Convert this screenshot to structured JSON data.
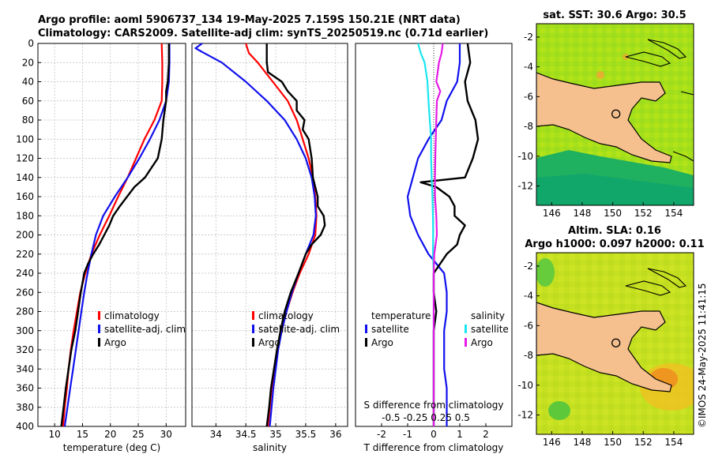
{
  "header": {
    "title_line1": "Argo profile: aoml 5906737_134 19-May-2025 7.159S 150.21E (NRT data)",
    "title_line2": "Climatology: CARS2009. Satellite-adj clim: synTS_20250519.nc (0.71d earlier)"
  },
  "credit": "©IMOS 24-May-2025 11:41:15",
  "colors": {
    "climatology": "#ff0000",
    "satellite": "#1010ee",
    "argo": "#000000",
    "sal_sat": "#19e6f0",
    "sal_argo": "#e619e6",
    "land": "#f5c08e"
  },
  "chart_data": [
    {
      "type": "line",
      "id": "temperature",
      "xlabel": "temperature (deg C)",
      "ylabel": "",
      "xlim": [
        7,
        33.5
      ],
      "ylim": [
        400,
        0
      ],
      "xticks": [
        10,
        15,
        20,
        25,
        30
      ],
      "yticks": [
        0,
        20,
        40,
        60,
        80,
        100,
        120,
        140,
        160,
        180,
        200,
        220,
        240,
        260,
        280,
        300,
        320,
        340,
        360,
        380,
        400
      ],
      "grid": true,
      "legend_position": "lower-right",
      "legend": [
        "climatology",
        "satellite-adj. clim",
        "Argo"
      ],
      "series": [
        {
          "name": "climatology",
          "color": "#ff0000",
          "depth": [
            0,
            20,
            40,
            60,
            80,
            100,
            120,
            140,
            160,
            180,
            200,
            220,
            240,
            260,
            280,
            300,
            320,
            340,
            360,
            380,
            400
          ],
          "values": [
            29.2,
            29.3,
            29.3,
            29.2,
            27.9,
            26.1,
            24.6,
            23.1,
            21.4,
            19.8,
            18.1,
            16.6,
            15.5,
            14.6,
            14.0,
            13.4,
            12.9,
            12.5,
            12.2,
            11.8,
            11.5
          ]
        },
        {
          "name": "satellite-adj. clim",
          "color": "#1010ee",
          "depth": [
            0,
            20,
            40,
            60,
            80,
            100,
            120,
            140,
            160,
            180,
            200,
            220,
            240,
            260,
            280,
            300,
            320,
            340,
            360,
            380,
            400
          ],
          "values": [
            30.6,
            30.6,
            30.5,
            30.0,
            28.8,
            27.1,
            25.2,
            23.1,
            20.8,
            18.7,
            17.4,
            16.6,
            15.9,
            15.3,
            14.8,
            14.3,
            13.8,
            13.3,
            12.8,
            12.3,
            11.8
          ]
        },
        {
          "name": "Argo",
          "color": "#000000",
          "depth": [
            0,
            20,
            40,
            50,
            60,
            80,
            100,
            120,
            140,
            150,
            160,
            170,
            180,
            190,
            200,
            210,
            220,
            230,
            240,
            260,
            280,
            300,
            320,
            340,
            360,
            380,
            400
          ],
          "values": [
            30.5,
            30.5,
            30.3,
            30.0,
            30.0,
            29.5,
            29.2,
            28.5,
            26.2,
            24.3,
            23.0,
            21.7,
            20.5,
            19.8,
            18.9,
            18.0,
            16.9,
            16.0,
            15.3,
            14.7,
            14.2,
            13.7,
            13.0,
            12.5,
            12.0,
            11.6,
            11.2
          ]
        }
      ]
    },
    {
      "type": "line",
      "id": "salinity",
      "xlabel": "salinity",
      "xlim": [
        33.6,
        36.2
      ],
      "ylim": [
        400,
        0
      ],
      "xticks": [
        34,
        34.5,
        35,
        35.5,
        36
      ],
      "xtick_labels": [
        "34",
        "34.5",
        "35",
        "35.5",
        "36"
      ],
      "grid": true,
      "legend_position": "lower-right",
      "legend": [
        "climatology",
        "satellite-adj. clim",
        "Argo"
      ],
      "series": [
        {
          "name": "climatology",
          "color": "#ff0000",
          "depth": [
            0,
            10,
            20,
            40,
            60,
            80,
            100,
            120,
            140,
            160,
            180,
            200,
            220,
            240,
            260,
            280,
            300,
            320,
            340,
            360,
            380,
            400
          ],
          "values": [
            34.5,
            34.55,
            34.7,
            34.95,
            35.2,
            35.35,
            35.45,
            35.55,
            35.62,
            35.66,
            35.68,
            35.66,
            35.55,
            35.4,
            35.28,
            35.18,
            35.1,
            35.03,
            34.98,
            34.93,
            34.9,
            34.87
          ]
        },
        {
          "name": "satellite-adj. clim",
          "color": "#1010ee",
          "depth": [
            0,
            5,
            10,
            20,
            40,
            60,
            80,
            100,
            120,
            140,
            160,
            180,
            200,
            220,
            240,
            260,
            280,
            300,
            320,
            340,
            360,
            380,
            400
          ],
          "values": [
            33.77,
            33.66,
            33.8,
            34.1,
            34.5,
            34.85,
            35.15,
            35.35,
            35.5,
            35.6,
            35.65,
            35.67,
            35.63,
            35.5,
            35.38,
            35.27,
            35.18,
            35.1,
            35.04,
            35.0,
            34.96,
            34.93,
            34.9
          ]
        },
        {
          "name": "Argo",
          "color": "#000000",
          "depth": [
            0,
            20,
            30,
            40,
            50,
            60,
            70,
            80,
            90,
            100,
            120,
            140,
            160,
            170,
            180,
            190,
            200,
            210,
            220,
            240,
            260,
            280,
            300,
            320,
            340,
            360,
            380,
            400
          ],
          "values": [
            34.85,
            34.85,
            34.87,
            35.1,
            35.2,
            35.35,
            35.35,
            35.48,
            35.45,
            35.55,
            35.6,
            35.62,
            35.7,
            35.7,
            35.8,
            35.82,
            35.75,
            35.6,
            35.5,
            35.38,
            35.25,
            35.15,
            35.08,
            35.02,
            34.97,
            34.92,
            34.89,
            34.85
          ]
        }
      ]
    },
    {
      "type": "line",
      "id": "difference",
      "xlabel": "T difference from climatology",
      "top_axis_label": "S difference from climatology",
      "xlim": [
        -3,
        3
      ],
      "ylim": [
        400,
        0
      ],
      "xticks": [
        -2,
        -1,
        0,
        1,
        2
      ],
      "xtick_labels": [
        "-2",
        "-1",
        "0",
        "1",
        "2"
      ],
      "s_ticks_label": "-0.5 -0.25        0.25  0.5",
      "grid": false,
      "zero_line": "dotted",
      "legend_position": "lower",
      "legend_headers": [
        "temperature",
        "salinity"
      ],
      "legend": [
        "satellite",
        "Argo"
      ],
      "series": [
        {
          "name": "temperature satellite",
          "color": "#1010ee",
          "depth": [
            0,
            20,
            40,
            60,
            80,
            100,
            120,
            140,
            160,
            180,
            200,
            220,
            240,
            260,
            280,
            300,
            320,
            340,
            360,
            380,
            400
          ],
          "values": [
            1.0,
            1.0,
            0.9,
            0.5,
            0.3,
            -0.2,
            -0.6,
            -0.8,
            -1.0,
            -0.9,
            -0.6,
            -0.2,
            0.4,
            0.5,
            0.5,
            0.4,
            0.4,
            0.4,
            0.5,
            0.5,
            0.5
          ]
        },
        {
          "name": "temperature Argo",
          "color": "#000000",
          "depth": [
            0,
            20,
            40,
            60,
            80,
            100,
            120,
            140,
            145,
            150,
            160,
            170,
            180,
            190,
            200,
            210,
            220,
            240,
            260,
            280,
            300,
            320,
            340,
            360,
            380,
            400
          ],
          "values": [
            1.3,
            1.4,
            1.2,
            1.3,
            1.6,
            1.7,
            1.5,
            1.2,
            -0.5,
            0.1,
            0.6,
            0.8,
            0.8,
            1.2,
            1.0,
            0.9,
            0.5,
            0.0,
            0.0,
            0.1,
            0.0,
            0.0,
            0.0,
            0.0,
            0.0,
            0.0
          ]
        },
        {
          "name": "salinity satellite",
          "color": "#19e6f0",
          "depth": [
            0,
            10,
            20,
            40,
            60,
            80,
            100,
            120,
            140,
            160,
            180,
            200,
            220,
            240,
            260,
            280,
            300,
            320,
            340,
            360,
            380,
            400
          ],
          "values": [
            -0.6,
            -0.5,
            -0.35,
            -0.24,
            -0.2,
            -0.15,
            -0.1,
            -0.1,
            -0.08,
            -0.05,
            -0.03,
            -0.02,
            -0.03,
            0.0,
            0.0,
            0.0,
            0.0,
            0.0,
            0.0,
            0.0,
            0.0,
            0.0
          ]
        },
        {
          "name": "salinity Argo",
          "color": "#e619e6",
          "depth": [
            0,
            10,
            20,
            30,
            40,
            50,
            60,
            80,
            100,
            120,
            140,
            160,
            180,
            200,
            220,
            240,
            260,
            280,
            300,
            320,
            340,
            360,
            380,
            400
          ],
          "values": [
            0.35,
            0.3,
            0.2,
            0.15,
            0.1,
            0.25,
            0.12,
            0.1,
            0.08,
            0.06,
            0.05,
            0.05,
            0.1,
            0.12,
            0.02,
            0.0,
            0.0,
            0.0,
            0.0,
            0.0,
            0.0,
            0.0,
            0.0,
            0.0
          ]
        }
      ]
    },
    {
      "type": "heatmap",
      "id": "sst-map",
      "title": "sat. SST: 30.6 Argo: 30.5",
      "xlim": [
        145,
        155.3
      ],
      "ylim": [
        -13.3,
        -1.1
      ],
      "xticks": [
        146,
        148,
        150,
        152,
        154
      ],
      "yticks": [
        -2,
        -4,
        -6,
        -8,
        -10,
        -12
      ],
      "marker": {
        "lon": 150.21,
        "lat": -7.159
      }
    },
    {
      "type": "heatmap",
      "id": "sla-map",
      "title_line1": "Altim. SLA: 0.16",
      "title_line2": "Argo h1000: 0.097 h2000: 0.11",
      "xlim": [
        145,
        155.3
      ],
      "ylim": [
        -13.3,
        -1.1
      ],
      "xticks": [
        146,
        148,
        150,
        152,
        154
      ],
      "yticks": [
        -2,
        -4,
        -6,
        -8,
        -10,
        -12
      ],
      "marker": {
        "lon": 150.21,
        "lat": -7.159
      }
    }
  ]
}
